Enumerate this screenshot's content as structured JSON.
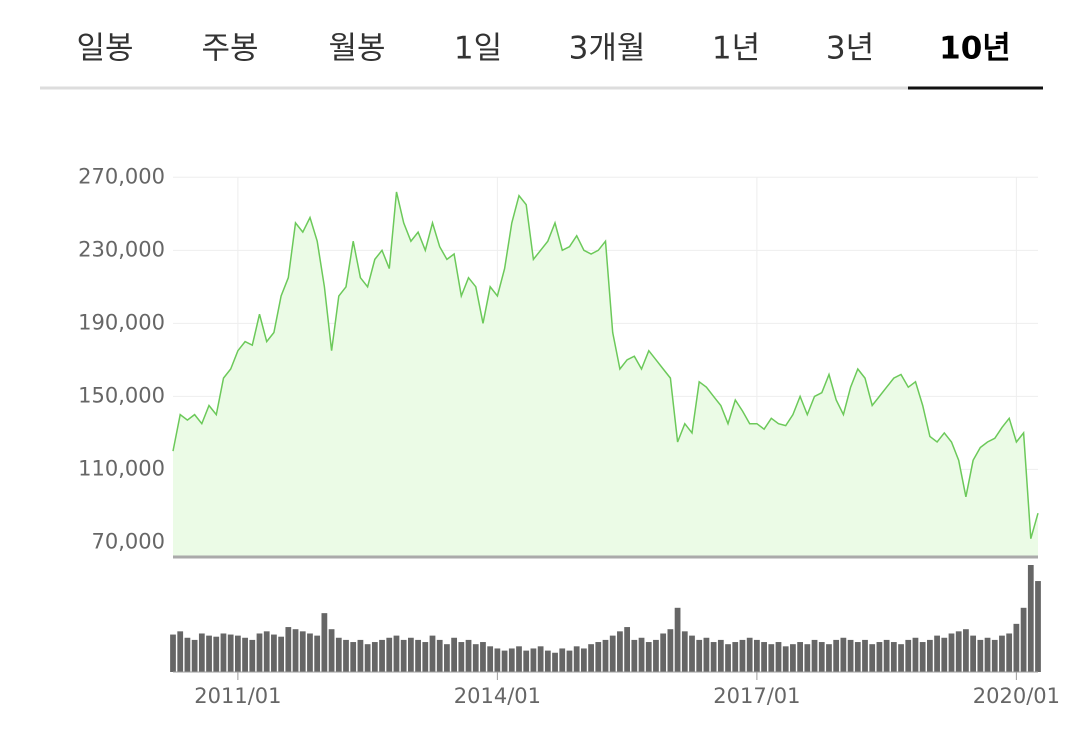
{
  "tabs": [
    "일봉",
    "주봉",
    "월봉",
    "1일",
    "3개월",
    "1년",
    "3년",
    "10년"
  ],
  "active_tab": 7,
  "chart_data": {
    "type": "line",
    "x": [
      "2010/04",
      "2010/05",
      "2010/06",
      "2010/07",
      "2010/08",
      "2010/09",
      "2010/10",
      "2010/11",
      "2010/12",
      "2011/01",
      "2011/02",
      "2011/03",
      "2011/04",
      "2011/05",
      "2011/06",
      "2011/07",
      "2011/08",
      "2011/09",
      "2011/10",
      "2011/11",
      "2011/12",
      "2012/01",
      "2012/02",
      "2012/03",
      "2012/04",
      "2012/05",
      "2012/06",
      "2012/07",
      "2012/08",
      "2012/09",
      "2012/10",
      "2012/11",
      "2012/12",
      "2013/01",
      "2013/02",
      "2013/03",
      "2013/04",
      "2013/05",
      "2013/06",
      "2013/07",
      "2013/08",
      "2013/09",
      "2013/10",
      "2013/11",
      "2013/12",
      "2014/01",
      "2014/02",
      "2014/03",
      "2014/04",
      "2014/05",
      "2014/06",
      "2014/07",
      "2014/08",
      "2014/09",
      "2014/10",
      "2014/11",
      "2014/12",
      "2015/01",
      "2015/02",
      "2015/03",
      "2015/04",
      "2015/05",
      "2015/06",
      "2015/07",
      "2015/08",
      "2015/09",
      "2015/10",
      "2015/11",
      "2015/12",
      "2016/01",
      "2016/02",
      "2016/03",
      "2016/04",
      "2016/05",
      "2016/06",
      "2016/07",
      "2016/08",
      "2016/09",
      "2016/10",
      "2016/11",
      "2016/12",
      "2017/01",
      "2017/02",
      "2017/03",
      "2017/04",
      "2017/05",
      "2017/06",
      "2017/07",
      "2017/08",
      "2017/09",
      "2017/10",
      "2017/11",
      "2017/12",
      "2018/01",
      "2018/02",
      "2018/03",
      "2018/04",
      "2018/05",
      "2018/06",
      "2018/07",
      "2018/08",
      "2018/09",
      "2018/10",
      "2018/11",
      "2018/12",
      "2019/01",
      "2019/02",
      "2019/03",
      "2019/04",
      "2019/05",
      "2019/06",
      "2019/07",
      "2019/08",
      "2019/09",
      "2019/10",
      "2019/11",
      "2019/12",
      "2020/01",
      "2020/02",
      "2020/03",
      "2020/04"
    ],
    "series": [
      {
        "color": "#6cc95a",
        "fill": "#ebfbe6",
        "values": [
          120000,
          140000,
          137000,
          140000,
          135000,
          145000,
          140000,
          160000,
          165000,
          175000,
          180000,
          178000,
          195000,
          180000,
          185000,
          205000,
          215000,
          245000,
          240000,
          248000,
          235000,
          210000,
          175000,
          205000,
          210000,
          235000,
          215000,
          210000,
          225000,
          230000,
          220000,
          262000,
          245000,
          235000,
          240000,
          230000,
          245000,
          232000,
          225000,
          228000,
          205000,
          215000,
          210000,
          190000,
          210000,
          205000,
          220000,
          245000,
          260000,
          255000,
          225000,
          230000,
          235000,
          245000,
          230000,
          232000,
          238000,
          230000,
          228000,
          230000,
          235000,
          185000,
          165000,
          170000,
          172000,
          165000,
          175000,
          170000,
          165000,
          160000,
          125000,
          135000,
          130000,
          158000,
          155000,
          150000,
          145000,
          135000,
          148000,
          142000,
          135000,
          135000,
          132000,
          138000,
          135000,
          134000,
          140000,
          150000,
          140000,
          150000,
          152000,
          162000,
          148000,
          140000,
          155000,
          165000,
          160000,
          145000,
          150000,
          155000,
          160000,
          162000,
          155000,
          158000,
          145000,
          128000,
          125000,
          130000,
          125000,
          115000,
          95000,
          115000,
          122000,
          125000,
          127000,
          133000,
          138000,
          125000,
          130000,
          72000,
          86000
        ]
      }
    ],
    "volume": {
      "color": "#666666",
      "lim": [
        0,
        100
      ],
      "values": [
        35,
        38,
        32,
        30,
        36,
        34,
        33,
        36,
        35,
        34,
        32,
        30,
        36,
        38,
        35,
        33,
        42,
        40,
        38,
        36,
        34,
        55,
        40,
        32,
        30,
        28,
        30,
        26,
        28,
        30,
        32,
        34,
        30,
        32,
        30,
        28,
        34,
        30,
        26,
        32,
        28,
        30,
        26,
        28,
        24,
        22,
        20,
        22,
        24,
        20,
        22,
        24,
        20,
        18,
        22,
        20,
        24,
        22,
        26,
        28,
        30,
        34,
        38,
        42,
        30,
        32,
        28,
        30,
        36,
        40,
        60,
        38,
        34,
        30,
        32,
        28,
        30,
        26,
        28,
        30,
        32,
        30,
        28,
        26,
        28,
        24,
        26,
        28,
        26,
        30,
        28,
        26,
        30,
        32,
        30,
        28,
        30,
        26,
        28,
        30,
        28,
        26,
        30,
        32,
        28,
        30,
        34,
        32,
        36,
        38,
        40,
        34,
        30,
        32,
        30,
        34,
        36,
        45,
        60,
        100,
        85
      ]
    },
    "xlim": [
      "2010/04",
      "2020/04"
    ],
    "xticks": [
      "2011/01",
      "2014/01",
      "2017/01",
      "2020/01"
    ],
    "ylim": [
      62000,
      274000
    ],
    "yticks": [
      {
        "value": 70000,
        "label": "70,000"
      },
      {
        "value": 110000,
        "label": "110,000"
      },
      {
        "value": 150000,
        "label": "150,000"
      },
      {
        "value": 190000,
        "label": "190,000"
      },
      {
        "value": 230000,
        "label": "230,000"
      },
      {
        "value": 270000,
        "label": "270,000"
      }
    ],
    "grid": true
  }
}
